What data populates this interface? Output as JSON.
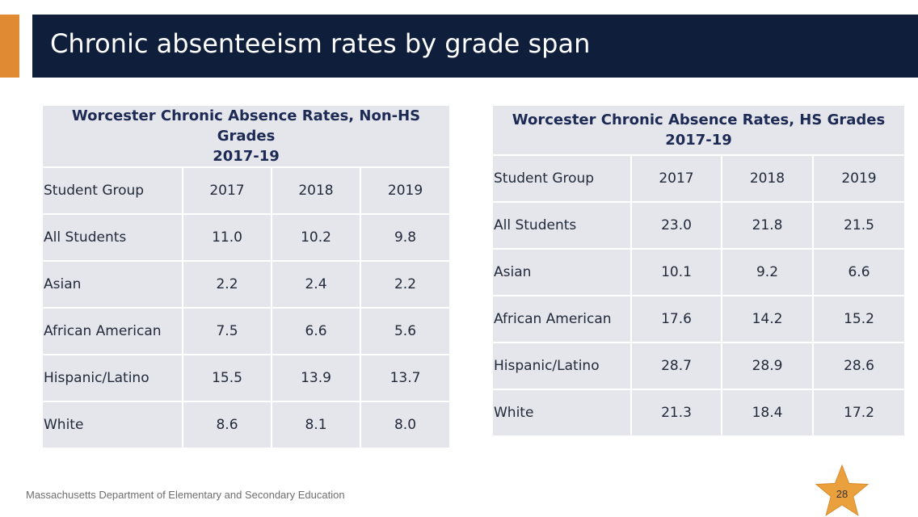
{
  "header": {
    "title": "Chronic absenteeism rates by grade span",
    "accent_color": "#e08a33",
    "background_color": "#0f1e3a"
  },
  "tables": [
    {
      "caption_line1": "Worcester Chronic Absence Rates, Non-HS Grades",
      "caption_line2": "2017-19",
      "columns": [
        "Student Group",
        "2017",
        "2018",
        "2019"
      ],
      "rows": [
        [
          "All Students",
          "11.0",
          "10.2",
          "9.8"
        ],
        [
          "Asian",
          "2.2",
          "2.4",
          "2.2"
        ],
        [
          "African American",
          "7.5",
          "6.6",
          "5.6"
        ],
        [
          "Hispanic/Latino",
          "15.5",
          "13.9",
          "13.7"
        ],
        [
          "White",
          "8.6",
          "8.1",
          "8.0"
        ]
      ]
    },
    {
      "caption_line1": "Worcester Chronic Absence Rates, HS Grades",
      "caption_line2": "2017-19",
      "columns": [
        "Student Group",
        "2017",
        "2018",
        "2019"
      ],
      "rows": [
        [
          "All Students",
          "23.0",
          "21.8",
          "21.5"
        ],
        [
          "Asian",
          "10.1",
          "9.2",
          "6.6"
        ],
        [
          "African American",
          "17.6",
          "14.2",
          "15.2"
        ],
        [
          "Hispanic/Latino",
          "28.7",
          "28.9",
          "28.6"
        ],
        [
          "White",
          "21.3",
          "18.4",
          "17.2"
        ]
      ]
    }
  ],
  "footer": {
    "organization": "Massachusetts Department of Elementary and Secondary Education",
    "page_number": "28",
    "star_color": "#eaa13d"
  }
}
